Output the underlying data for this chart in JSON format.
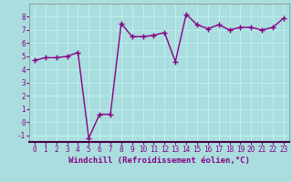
{
  "x": [
    0,
    1,
    2,
    3,
    4,
    5,
    6,
    7,
    8,
    9,
    10,
    11,
    12,
    13,
    14,
    15,
    16,
    17,
    18,
    19,
    20,
    21,
    22,
    23
  ],
  "y": [
    4.7,
    4.9,
    4.9,
    5.0,
    5.3,
    -1.2,
    0.6,
    0.6,
    7.5,
    6.5,
    6.5,
    6.6,
    6.8,
    4.6,
    8.2,
    7.4,
    7.1,
    7.4,
    7.0,
    7.2,
    7.2,
    7.0,
    7.2,
    7.9
  ],
  "line_color": "#880088",
  "marker": "+",
  "marker_size": 4,
  "marker_linewidth": 1.0,
  "xlabel": "Windchill (Refroidissement éolien,°C)",
  "xlim": [
    -0.5,
    23.5
  ],
  "ylim": [
    -1.5,
    9.0
  ],
  "yticks": [
    -1,
    0,
    1,
    2,
    3,
    4,
    5,
    6,
    7,
    8
  ],
  "xticks": [
    0,
    1,
    2,
    3,
    4,
    5,
    6,
    7,
    8,
    9,
    10,
    11,
    12,
    13,
    14,
    15,
    16,
    17,
    18,
    19,
    20,
    21,
    22,
    23
  ],
  "background_color": "#aadddd",
  "grid_color": "#bbeeee",
  "tick_label_color": "#880088",
  "xlabel_color": "#880088",
  "linewidth": 1.0,
  "tick_fontsize": 5.5,
  "xlabel_fontsize": 6.5
}
